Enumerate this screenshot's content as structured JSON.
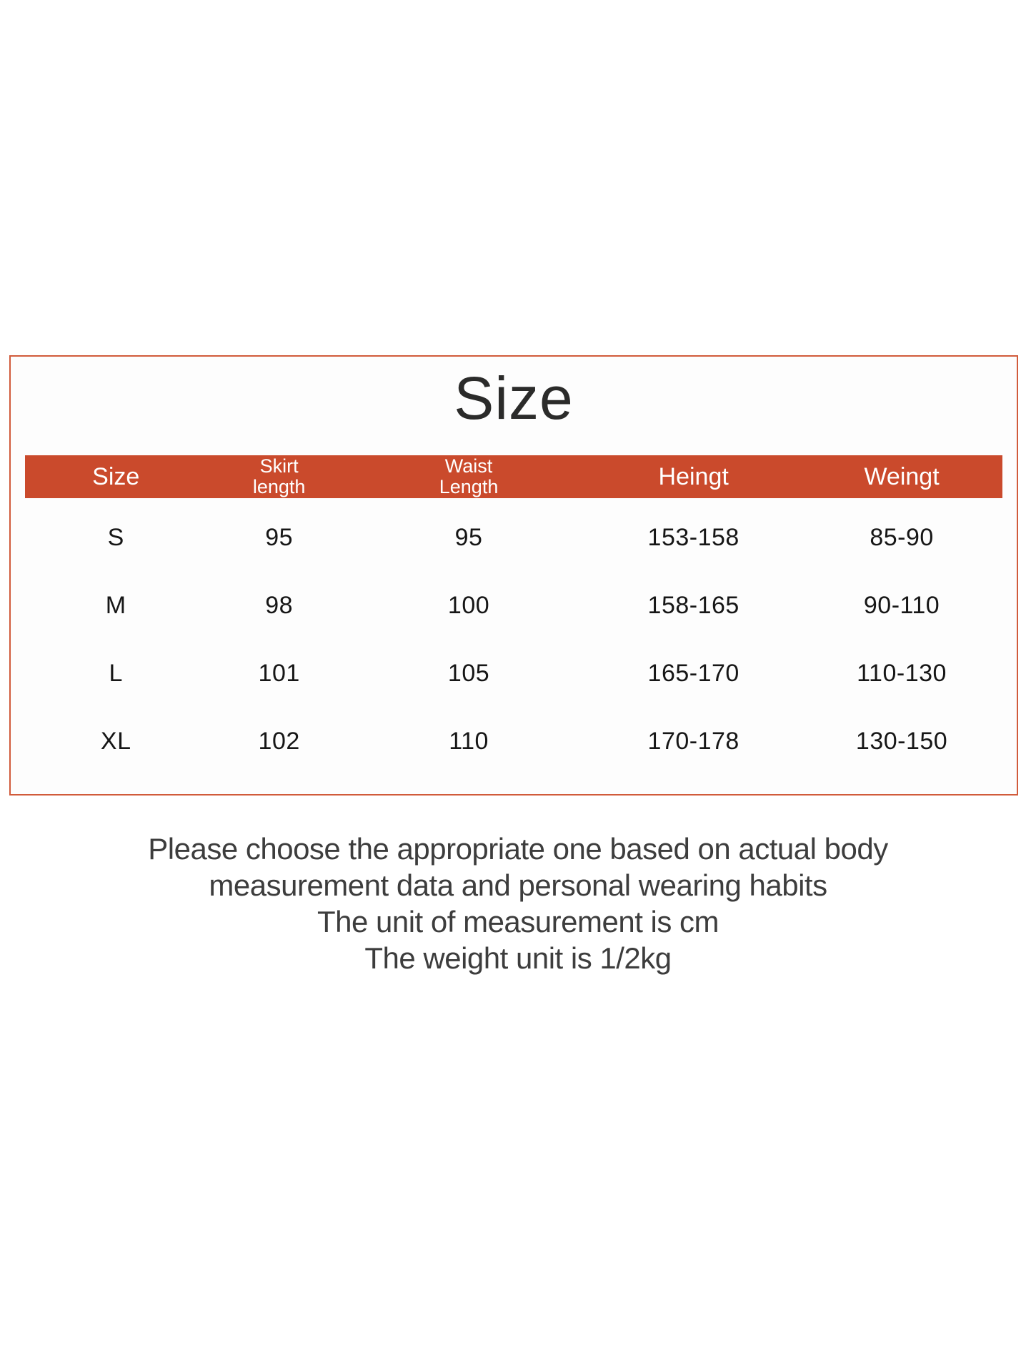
{
  "table": {
    "title": "Size",
    "header": {
      "columns": [
        {
          "line1": "Size",
          "line2": ""
        },
        {
          "line1": "Skirt",
          "line2": "length"
        },
        {
          "line1": "Waist",
          "line2": "Length"
        },
        {
          "line1": "Heingt",
          "line2": ""
        },
        {
          "line1": "Weingt",
          "line2": ""
        }
      ]
    },
    "rows": [
      {
        "size": "S",
        "skirt_length": "95",
        "waist_length": "95",
        "height": "153-158",
        "weight": "85-90"
      },
      {
        "size": "M",
        "skirt_length": "98",
        "waist_length": "100",
        "height": "158-165",
        "weight": "90-110"
      },
      {
        "size": "L",
        "skirt_length": "101",
        "waist_length": "105",
        "height": "165-170",
        "weight": "110-130"
      },
      {
        "size": "XL",
        "skirt_length": "102",
        "waist_length": "110",
        "height": "170-178",
        "weight": "130-150"
      }
    ]
  },
  "notes": {
    "line1": "Please choose the appropriate one based on actual body",
    "line2": "measurement data and personal wearing habits",
    "line3": "The unit of measurement is cm",
    "line4": "The weight unit is 1/2kg"
  },
  "colors": {
    "accent_band": "#ca4a2c",
    "box_border": "#d15b3b",
    "header_text": "#ffffff",
    "body_text": "#161616",
    "note_text": "#3d3d3d"
  }
}
